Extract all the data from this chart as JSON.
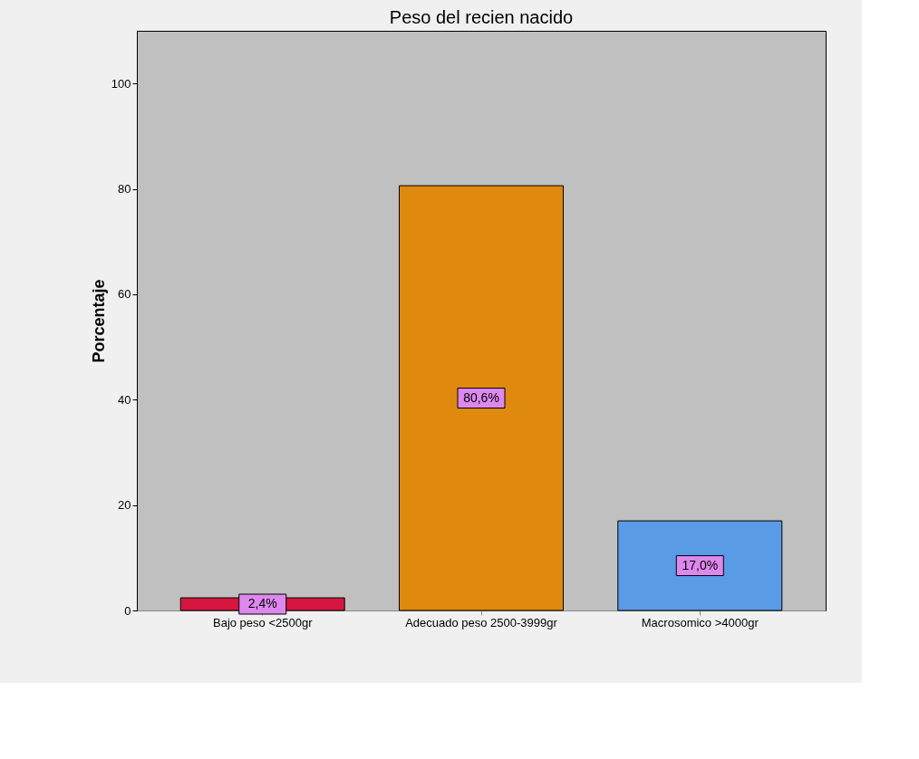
{
  "chart_data": {
    "type": "bar",
    "title": "Peso del recien nacido",
    "ylabel": "Porcentaje",
    "categories": [
      "Bajo peso <2500gr",
      "Adecuado peso 2500-3999gr",
      "Macrosomico >4000gr"
    ],
    "values": [
      2.4,
      80.6,
      17.0
    ],
    "colors": [
      "#d5173f",
      "#e0890f",
      "#5a9be6"
    ],
    "value_labels": [
      "2,4%",
      "80,6%",
      "17,0%"
    ],
    "ylim": [
      0,
      110
    ],
    "yticks": [
      0,
      20,
      40,
      60,
      80,
      100
    ],
    "grid": false
  }
}
